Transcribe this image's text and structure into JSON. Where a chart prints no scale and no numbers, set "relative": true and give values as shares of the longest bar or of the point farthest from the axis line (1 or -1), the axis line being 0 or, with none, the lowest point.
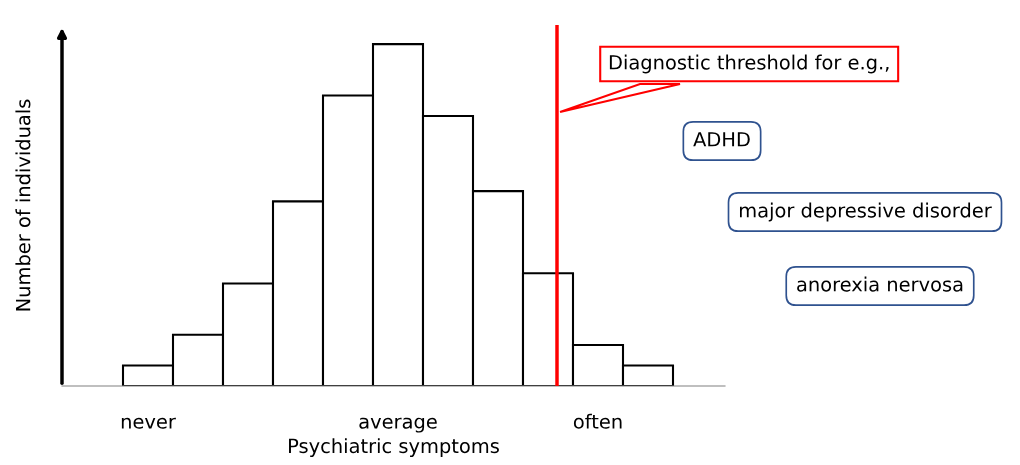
{
  "chart_data": {
    "type": "bar",
    "relative": true,
    "xlabel": "Psychiatric symptoms",
    "ylabel": "Number of individuals",
    "categories": [
      "never",
      null,
      null,
      null,
      null,
      "average",
      null,
      null,
      null,
      "often",
      null
    ],
    "values": [
      0.06,
      0.15,
      0.3,
      0.54,
      0.85,
      1,
      0.79,
      0.57,
      0.33,
      0.12,
      0.06
    ],
    "color": "#ffffff",
    "annotations": [
      "Diagnostic threshold for e.g.,",
      "ADHD",
      "major depressive disorder",
      "anorexia nervosa"
    ],
    "grid": false
  }
}
